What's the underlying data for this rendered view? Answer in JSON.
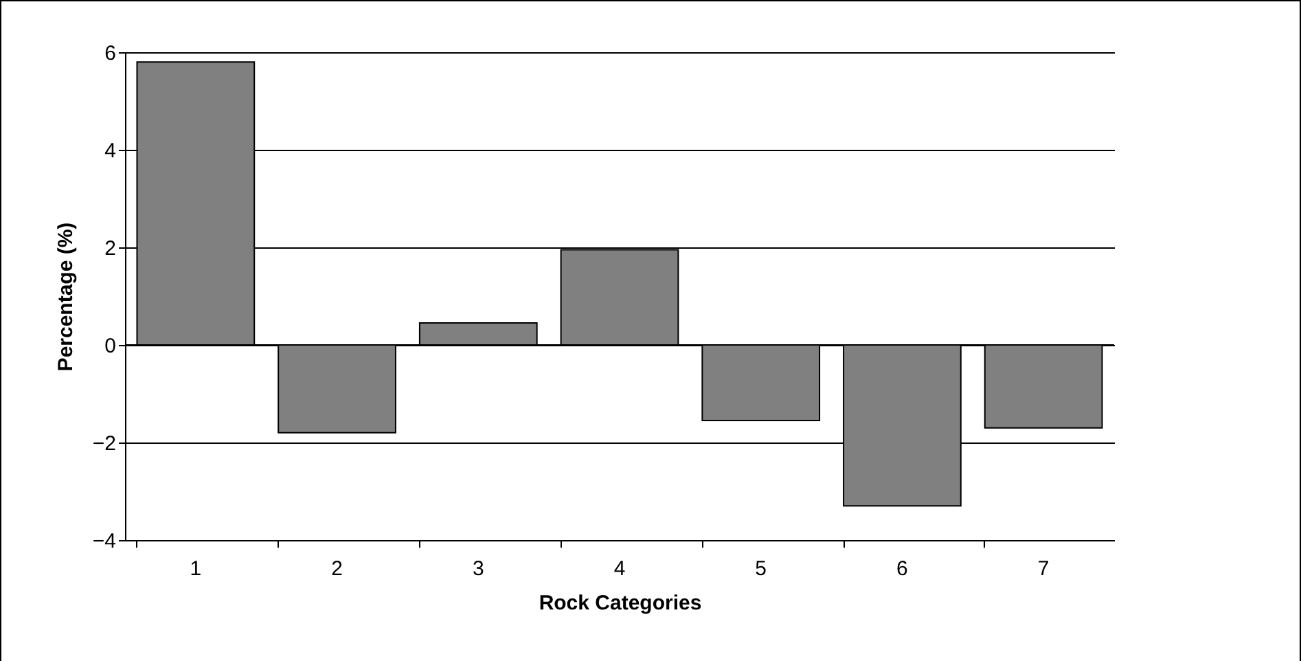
{
  "chart_data": {
    "type": "bar",
    "xlabel": "Rock Categories",
    "ylabel": "Percentage (%)",
    "categories": [
      "1",
      "2",
      "3",
      "4",
      "5",
      "6",
      "7"
    ],
    "values": [
      5.8,
      -1.8,
      0.45,
      1.95,
      -1.55,
      -3.3,
      -1.7
    ],
    "color": "#808080",
    "ylim": [
      -4,
      6
    ],
    "yticks": [
      -4,
      -2,
      0,
      2,
      4,
      6
    ],
    "grid": "y"
  }
}
